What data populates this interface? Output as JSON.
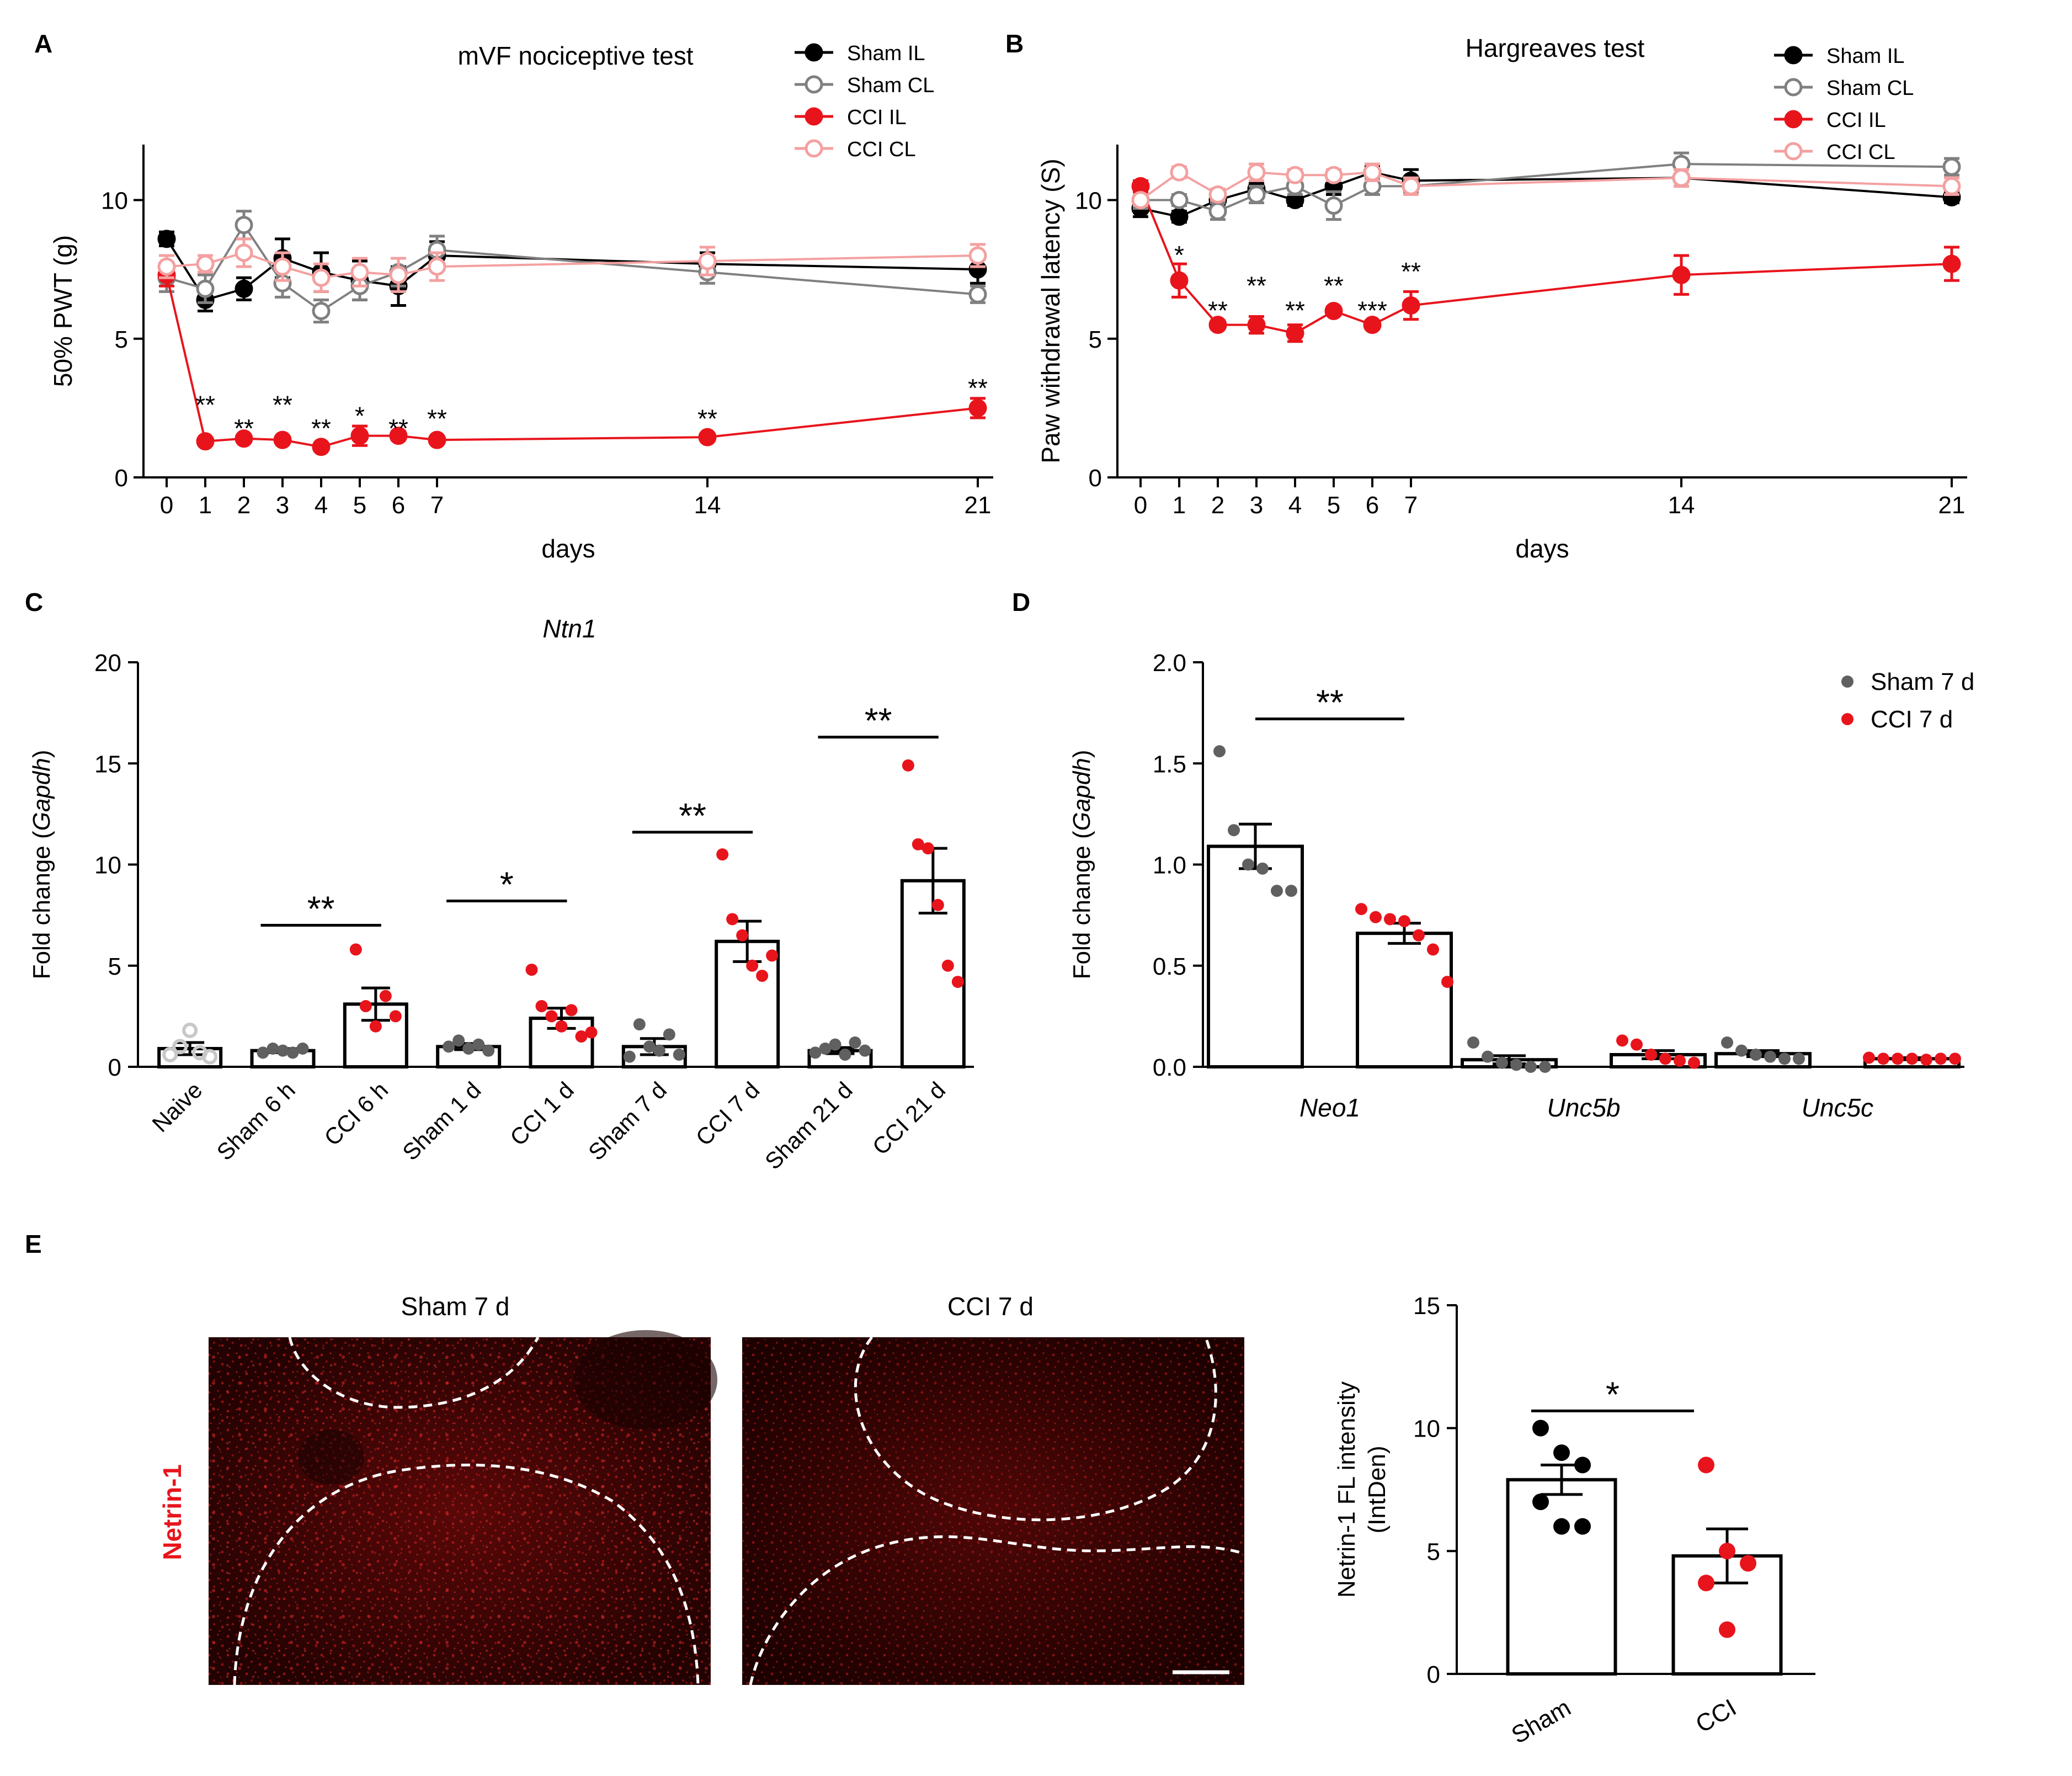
{
  "panel_letters": {
    "A": "A",
    "B": "B",
    "C": "C",
    "D": "D",
    "E": "E"
  },
  "colors": {
    "black": "#000000",
    "gray": "#808080",
    "red": "#e8141c",
    "pink": "#f4a0a0",
    "dark_gray": "#606060",
    "light_gray": "#c8c8c8"
  },
  "chart_data": [
    {
      "id": "A",
      "type": "line",
      "title": "mVF nociceptive test",
      "xlabel": "days",
      "ylabel": "50% PWT (g)",
      "xlim": [
        -0.6,
        21.4
      ],
      "ylim": [
        0,
        12
      ],
      "xticks": [
        "0",
        "1",
        "2",
        "3",
        "4",
        "5",
        "6",
        "7",
        "14",
        "21"
      ],
      "yticks": [
        "0",
        "5",
        "10"
      ],
      "legend_position": "top-right",
      "series": [
        {
          "name": "Sham IL",
          "color": "#000000",
          "filled": true,
          "x": [
            0,
            1,
            2,
            3,
            4,
            5,
            6,
            7,
            14,
            21
          ],
          "y": [
            8.6,
            6.4,
            6.8,
            7.9,
            7.4,
            7.1,
            6.9,
            8.0,
            7.7,
            7.5
          ],
          "err": [
            0.25,
            0.4,
            0.4,
            0.7,
            0.7,
            0.7,
            0.7,
            0.5,
            0.4,
            0.5
          ]
        },
        {
          "name": "Sham CL",
          "color": "#808080",
          "filled": false,
          "x": [
            0,
            1,
            2,
            3,
            4,
            5,
            6,
            7,
            14,
            21
          ],
          "y": [
            7.2,
            6.8,
            9.1,
            7.0,
            6.0,
            6.9,
            7.4,
            8.2,
            7.4,
            6.6
          ],
          "err": [
            0.5,
            0.5,
            0.5,
            0.5,
            0.4,
            0.5,
            0.5,
            0.5,
            0.4,
            0.3
          ]
        },
        {
          "name": "CCI IL",
          "color": "#e8141c",
          "filled": true,
          "x": [
            0,
            1,
            2,
            3,
            4,
            5,
            6,
            7,
            14,
            21
          ],
          "y": [
            7.3,
            1.3,
            1.4,
            1.35,
            1.1,
            1.5,
            1.5,
            1.35,
            1.45,
            2.5
          ],
          "err": [
            0.4,
            0.1,
            0.1,
            0.1,
            0.1,
            0.35,
            0.15,
            0.1,
            0.1,
            0.35
          ]
        },
        {
          "name": "CCI CL",
          "color": "#f4a0a0",
          "filled": false,
          "x": [
            0,
            1,
            2,
            3,
            4,
            5,
            6,
            7,
            14,
            21
          ],
          "y": [
            7.6,
            7.7,
            8.1,
            7.6,
            7.2,
            7.4,
            7.3,
            7.6,
            7.8,
            8.0
          ],
          "err": [
            0.4,
            0.3,
            0.5,
            0.5,
            0.5,
            0.5,
            0.6,
            0.5,
            0.5,
            0.4
          ]
        }
      ],
      "annotations": [
        {
          "x": 1,
          "y": 2.6,
          "text": "**"
        },
        {
          "x": 2,
          "y": 1.75,
          "text": "**"
        },
        {
          "x": 3,
          "y": 2.6,
          "text": "**"
        },
        {
          "x": 4,
          "y": 1.75,
          "text": "**"
        },
        {
          "x": 5,
          "y": 2.2,
          "text": "*"
        },
        {
          "x": 6,
          "y": 1.75,
          "text": "**"
        },
        {
          "x": 7,
          "y": 2.1,
          "text": "**"
        },
        {
          "x": 14,
          "y": 2.1,
          "text": "**"
        },
        {
          "x": 21,
          "y": 3.2,
          "text": "**"
        }
      ]
    },
    {
      "id": "B",
      "type": "line",
      "title": "Hargreaves test",
      "xlabel": "days",
      "ylabel": "Paw withdrawal latency (S)",
      "xlim": [
        -0.6,
        21.4
      ],
      "ylim": [
        0,
        12
      ],
      "xticks": [
        "0",
        "1",
        "2",
        "3",
        "4",
        "5",
        "6",
        "7",
        "14",
        "21"
      ],
      "yticks": [
        "0",
        "5",
        "10"
      ],
      "legend_position": "top-right",
      "series": [
        {
          "name": "Sham IL",
          "color": "#000000",
          "filled": true,
          "x": [
            0,
            1,
            2,
            3,
            4,
            5,
            6,
            7,
            14,
            21
          ],
          "y": [
            9.7,
            9.4,
            10.0,
            10.4,
            10.0,
            10.5,
            11.0,
            10.7,
            10.8,
            10.1
          ],
          "err": [
            0.3,
            0.2,
            0.2,
            0.2,
            0.2,
            0.3,
            0.2,
            0.4,
            0.3,
            0.2
          ]
        },
        {
          "name": "Sham CL",
          "color": "#808080",
          "filled": false,
          "x": [
            0,
            1,
            2,
            3,
            4,
            5,
            6,
            7,
            14,
            21
          ],
          "y": [
            10.0,
            10.0,
            9.6,
            10.2,
            10.5,
            9.8,
            10.5,
            10.5,
            11.3,
            11.2
          ],
          "err": [
            0.3,
            0.2,
            0.3,
            0.3,
            0.3,
            0.5,
            0.3,
            0.2,
            0.4,
            0.3
          ]
        },
        {
          "name": "CCI IL",
          "color": "#e8141c",
          "filled": true,
          "x": [
            0,
            1,
            2,
            3,
            4,
            5,
            6,
            7,
            14,
            21
          ],
          "y": [
            10.5,
            7.1,
            5.5,
            5.5,
            5.2,
            6.0,
            5.5,
            6.2,
            7.3,
            7.7
          ],
          "err": [
            0.2,
            0.6,
            0.15,
            0.3,
            0.3,
            0.15,
            0.15,
            0.5,
            0.7,
            0.6
          ]
        },
        {
          "name": "CCI CL",
          "color": "#f4a0a0",
          "filled": false,
          "x": [
            0,
            1,
            2,
            3,
            4,
            5,
            6,
            7,
            14,
            21
          ],
          "y": [
            10.0,
            11.0,
            10.2,
            11.0,
            10.9,
            10.9,
            11.0,
            10.5,
            10.8,
            10.5
          ],
          "err": [
            0.2,
            0.2,
            0.2,
            0.3,
            0.2,
            0.2,
            0.3,
            0.3,
            0.3,
            0.3
          ]
        }
      ],
      "annotations": [
        {
          "x": 1,
          "y": 8.0,
          "text": "*"
        },
        {
          "x": 2,
          "y": 6.0,
          "text": "**"
        },
        {
          "x": 3,
          "y": 6.9,
          "text": "**"
        },
        {
          "x": 4,
          "y": 6.0,
          "text": "**"
        },
        {
          "x": 5,
          "y": 6.9,
          "text": "**"
        },
        {
          "x": 6,
          "y": 6.0,
          "text": "***"
        },
        {
          "x": 7,
          "y": 7.4,
          "text": "**"
        }
      ]
    },
    {
      "id": "C",
      "type": "bar",
      "title": "Ntn1",
      "ylabel_prefix": "Fold change (",
      "ylabel_italic": "Gapdh",
      "ylabel_suffix": ")",
      "ylim": [
        0,
        20
      ],
      "yticks": [
        "0",
        "5",
        "10",
        "15",
        "20"
      ],
      "categories": [
        "Naive",
        "Sham 6 h",
        "CCI 6 h",
        "Sham 1 d",
        "CCI 1 d",
        "Sham 7 d",
        "CCI 7 d",
        "Sham 21 d",
        "CCI 21 d"
      ],
      "values": [
        0.9,
        0.8,
        3.1,
        1.0,
        2.4,
        1.0,
        6.2,
        0.8,
        9.2
      ],
      "sem": [
        0.3,
        0.1,
        0.8,
        0.15,
        0.5,
        0.4,
        1.0,
        0.15,
        1.6
      ],
      "dot_colors": [
        "#c8c8c8",
        "#606060",
        "#e8141c",
        "#606060",
        "#e8141c",
        "#606060",
        "#e8141c",
        "#606060",
        "#e8141c"
      ],
      "dot_hollow": [
        true,
        false,
        false,
        false,
        false,
        false,
        false,
        false,
        false
      ],
      "points": [
        [
          0.6,
          1.0,
          1.8,
          0.7,
          0.5
        ],
        [
          0.7,
          0.9,
          0.8,
          0.7,
          0.9
        ],
        [
          5.8,
          3.0,
          2.0,
          3.5,
          2.5
        ],
        [
          1.0,
          1.3,
          0.9,
          1.1,
          0.8
        ],
        [
          4.8,
          3.0,
          2.5,
          2.0,
          2.8,
          1.5,
          1.7
        ],
        [
          0.5,
          2.1,
          1.0,
          0.8,
          1.6,
          0.6
        ],
        [
          10.5,
          7.3,
          6.5,
          5.0,
          4.5,
          5.5
        ],
        [
          0.7,
          0.9,
          1.1,
          0.6,
          1.2,
          0.8
        ],
        [
          14.9,
          11.0,
          10.8,
          8.0,
          5.0,
          4.2
        ]
      ],
      "significance": [
        {
          "from": 1,
          "to": 2,
          "y": 7.0,
          "text": "**"
        },
        {
          "from": 3,
          "to": 4,
          "y": 8.2,
          "text": "*"
        },
        {
          "from": 5,
          "to": 6,
          "y": 11.6,
          "text": "**"
        },
        {
          "from": 7,
          "to": 8,
          "y": 16.3,
          "text": "**"
        }
      ]
    },
    {
      "id": "D",
      "type": "bar",
      "ylabel_prefix": "Fold change (",
      "ylabel_italic": "Gapdh",
      "ylabel_suffix": ")",
      "ylim": [
        0,
        2.0
      ],
      "yticks": [
        "0.0",
        "0.5",
        "1.0",
        "1.5",
        "2.0"
      ],
      "groups": [
        "Neo1",
        "Unc5b",
        "Unc5c"
      ],
      "legend_position": "top-right",
      "series": [
        {
          "name": "Sham 7 d",
          "color": "#606060",
          "values": [
            1.09,
            0.035,
            0.065
          ],
          "sem": [
            0.11,
            0.02,
            0.015
          ],
          "points": [
            [
              1.56,
              1.17,
              1.0,
              0.98,
              0.87,
              0.87
            ],
            [
              0.12,
              0.05,
              0.02,
              0.01,
              0.0,
              0.0
            ],
            [
              0.12,
              0.08,
              0.06,
              0.05,
              0.04,
              0.04
            ]
          ]
        },
        {
          "name": "CCI 7 d",
          "color": "#e8141c",
          "values": [
            0.66,
            0.06,
            0.04
          ],
          "sem": [
            0.05,
            0.02,
            0.005
          ],
          "points": [
            [
              0.78,
              0.74,
              0.73,
              0.72,
              0.65,
              0.58,
              0.42
            ],
            [
              0.13,
              0.11,
              0.06,
              0.04,
              0.03,
              0.02
            ],
            [
              0.045,
              0.04,
              0.04,
              0.04,
              0.035,
              0.04,
              0.04
            ]
          ]
        }
      ],
      "significance": [
        {
          "group": 0,
          "y": 1.72,
          "text": "**"
        }
      ]
    },
    {
      "id": "E",
      "type": "bar",
      "ylabel_line1": "Netrin-1 FL intensity",
      "ylabel_line2": "(IntDen)",
      "ylim": [
        0,
        15
      ],
      "yticks": [
        "0",
        "5",
        "10",
        "15"
      ],
      "categories": [
        "Sham",
        "CCI"
      ],
      "values": [
        7.9,
        4.8
      ],
      "sem": [
        0.6,
        1.1
      ],
      "dot_colors": [
        "#000000",
        "#e8141c"
      ],
      "points": [
        [
          10.0,
          9.0,
          8.5,
          7.0,
          6.0,
          6.0
        ],
        [
          8.5,
          5.0,
          4.5,
          3.7,
          1.8
        ]
      ],
      "significance": [
        {
          "from": 0,
          "to": 1,
          "y": 10.7,
          "text": "*"
        }
      ]
    }
  ],
  "panel_e_images": {
    "label": "Netrin-1",
    "image_titles": [
      "Sham 7 d",
      "CCI  7 d"
    ]
  }
}
